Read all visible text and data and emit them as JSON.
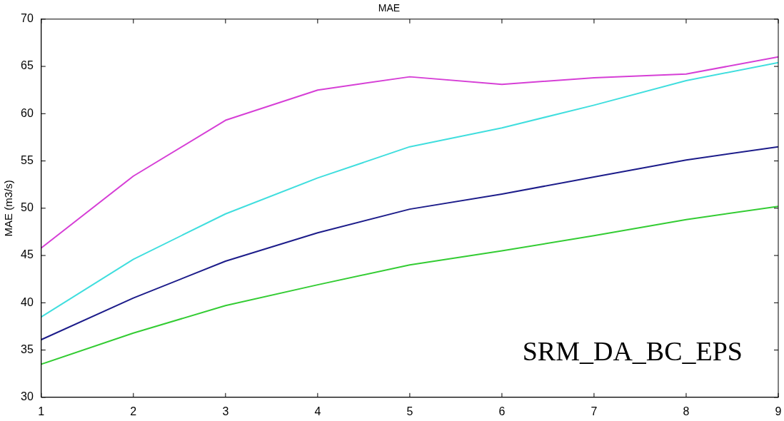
{
  "chart_data": {
    "type": "line",
    "title": "MAE",
    "ylabel": "MAE (m3/s)",
    "x": [
      1,
      2,
      3,
      4,
      5,
      6,
      7,
      8,
      9
    ],
    "series": [
      {
        "color": "#d63fd6",
        "values": [
          45.8,
          53.4,
          59.3,
          62.5,
          63.9,
          63.1,
          63.8,
          64.2,
          66.0
        ]
      },
      {
        "color": "#40dede",
        "values": [
          38.5,
          44.6,
          49.4,
          53.2,
          56.5,
          58.5,
          60.9,
          63.5,
          65.4
        ]
      },
      {
        "color": "#1c1c8a",
        "values": [
          36.1,
          40.5,
          44.4,
          47.4,
          49.9,
          51.5,
          53.3,
          55.1,
          56.5
        ]
      },
      {
        "color": "#33cc33",
        "values": [
          33.5,
          36.8,
          39.7,
          41.9,
          44.0,
          45.5,
          47.1,
          48.8,
          50.2
        ]
      }
    ],
    "xlim": [
      1,
      9
    ],
    "xticks": [
      1,
      2,
      3,
      4,
      5,
      6,
      7,
      8,
      9
    ],
    "ylim": [
      30,
      70
    ],
    "yticks": [
      30,
      35,
      40,
      45,
      50,
      55,
      60,
      65,
      70
    ],
    "grid": false,
    "legend": false,
    "marker": "none",
    "line_style": "solid",
    "annotations": [
      "SRM_DA_BC_EPS"
    ]
  }
}
